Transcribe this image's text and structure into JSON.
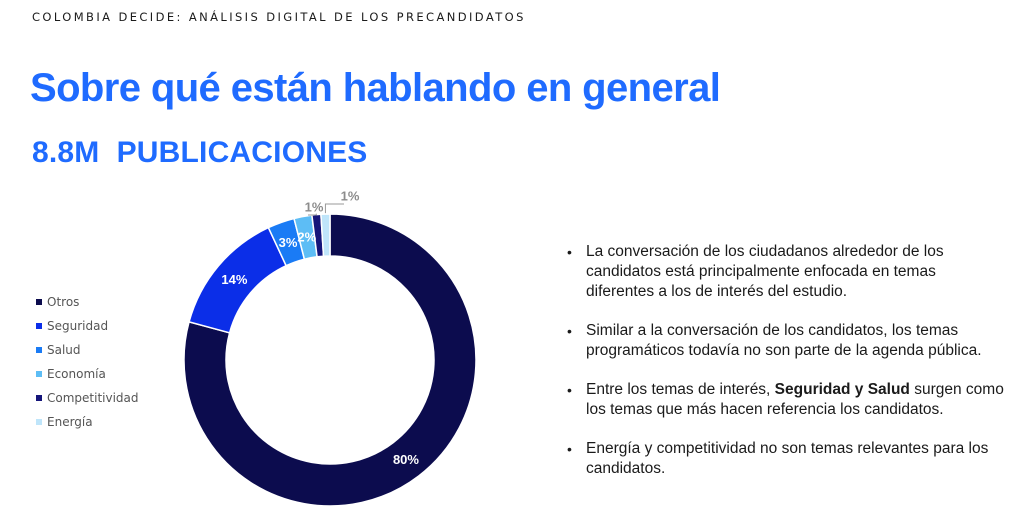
{
  "header": {
    "kicker": "COLOMBIA DECIDE: ANÁLISIS DIGITAL DE LOS PRECANDIDATOS",
    "title": "Sobre qué están hablando en general",
    "subtitle": "8.8M  PUBLICACIONES"
  },
  "colors": {
    "accent": "#1f6bff",
    "series": [
      "#0c0c4e",
      "#0b2ee8",
      "#1a7bf5",
      "#5dbdf5",
      "#15157a",
      "#bfe5fa"
    ]
  },
  "chart_data": {
    "type": "pie",
    "donut": true,
    "categories": [
      "Otros",
      "Seguridad",
      "Salud",
      "Economía",
      "Competitividad",
      "Energía"
    ],
    "values": [
      80,
      14,
      3,
      2,
      1,
      1
    ],
    "data_labels": [
      "80%",
      "14%",
      "3%",
      "2%",
      "1%",
      "1%"
    ],
    "legend_position": "left"
  },
  "bullets": [
    {
      "before": "La conversación de los ciudadanos alrededor de los candidatos está principalmente enfocada en temas diferentes a los de interés del estudio.",
      "bold": "",
      "after": ""
    },
    {
      "before": "Similar a la conversación de los candidatos, los temas programáticos todavía no son parte de la agenda pública.",
      "bold": "",
      "after": ""
    },
    {
      "before": "Entre los temas de interés, ",
      "bold": "Seguridad y Salud",
      "after": " surgen como los temas que más hacen referencia los candidatos."
    },
    {
      "before": "Energía y competitividad no son temas relevantes para los candidatos.",
      "bold": "",
      "after": ""
    }
  ]
}
